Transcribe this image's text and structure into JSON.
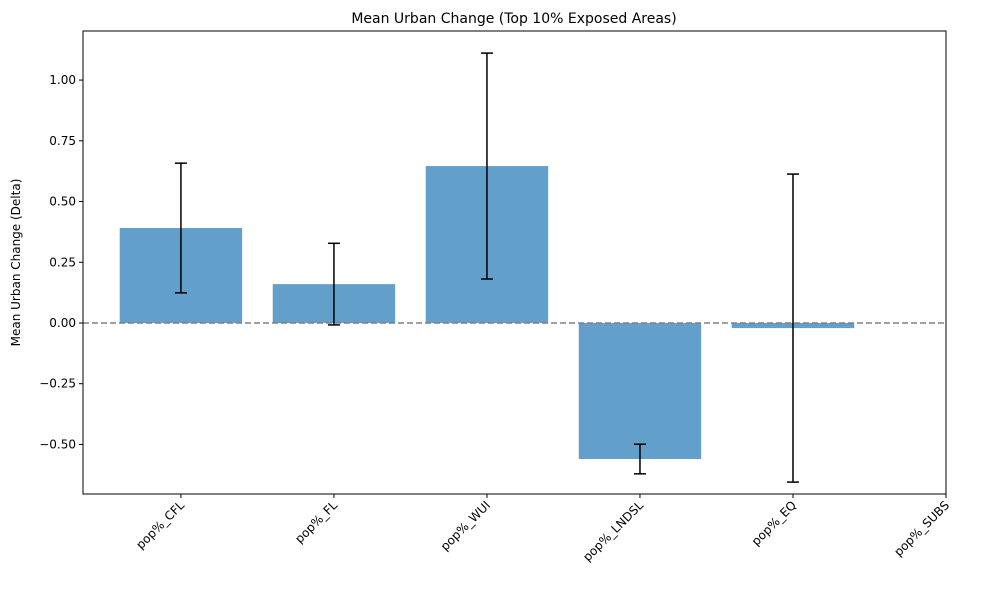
{
  "chart_data": {
    "type": "bar",
    "title": "Mean Urban Change (Top 10% Exposed Areas)",
    "y_label": "Mean Urban Change (Delta)",
    "categories": [
      "pop%_CFL",
      "pop%_FL",
      "pop%_WUI",
      "pop%_LNDSL",
      "pop%_EQ",
      "pop%_SUBS"
    ],
    "values": [
      0.391,
      0.16,
      0.646,
      -0.56,
      -0.021,
      null
    ],
    "errors": [
      0.267,
      0.168,
      0.465,
      0.061,
      0.634,
      null
    ],
    "color": "#629fca",
    "error_color": "#000000",
    "hline": 0,
    "hline_color": "#808080",
    "xlim": [
      -0.64,
      5.0
    ],
    "ylim": [
      -0.704,
      1.202
    ],
    "yticks": [
      {
        "value": -0.5,
        "label": "−0.50"
      },
      {
        "value": -0.25,
        "label": "−0.25"
      },
      {
        "value": 0,
        "label": "0.00"
      },
      {
        "value": 0.25,
        "label": "0.25"
      },
      {
        "value": 0.5,
        "label": "0.50"
      },
      {
        "value": 0.75,
        "label": "0.75"
      },
      {
        "value": 1,
        "label": "1.00"
      }
    ]
  }
}
